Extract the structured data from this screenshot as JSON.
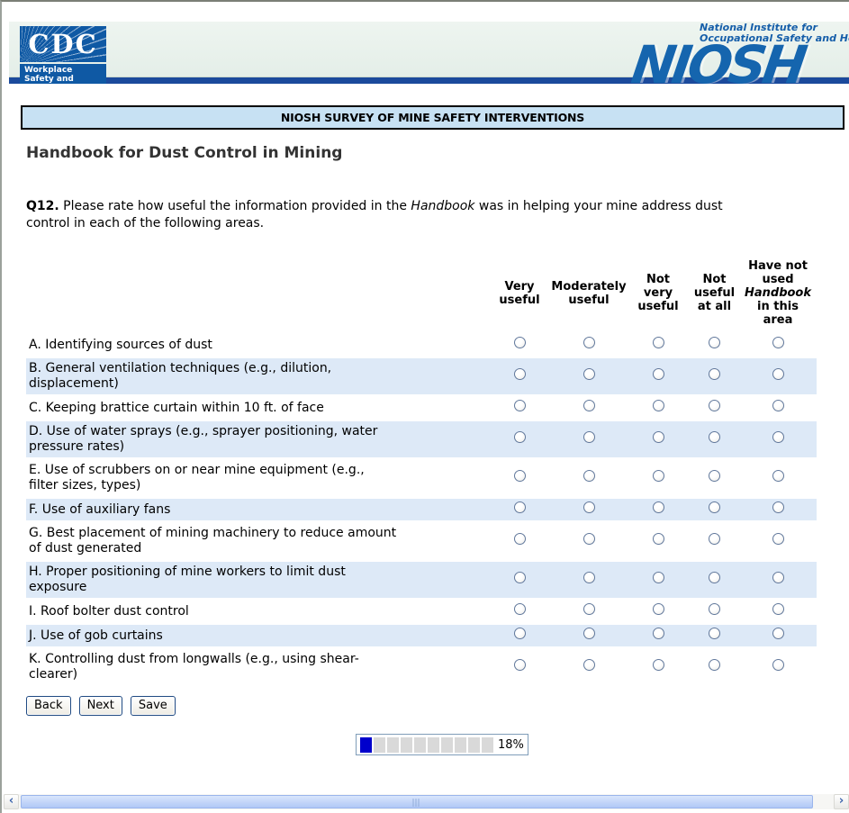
{
  "header": {
    "cdc": {
      "acronym": "CDC",
      "label_line1": "Workplace",
      "label_line2": "Safety and Health"
    },
    "niosh": {
      "tagline_line1": "National Institute for",
      "tagline_line2": "Occupational Safety and Health",
      "acronym": "NIOSH"
    }
  },
  "banner": {
    "title": "NIOSH SURVEY OF MINE SAFETY INTERVENTIONS"
  },
  "page": {
    "heading": "Handbook for Dust Control in Mining"
  },
  "question": {
    "number": "Q12.",
    "lead": " Please rate how useful the information provided in the ",
    "italic_word": "Handbook",
    "tail": " was in helping your mine address dust\ncontrol in each of the following areas."
  },
  "table": {
    "columns": [
      {
        "key": "very-useful",
        "label": "Very\nuseful"
      },
      {
        "key": "moderately-useful",
        "label": "Moderately\nuseful"
      },
      {
        "key": "not-very-useful",
        "label": "Not\nvery\nuseful"
      },
      {
        "key": "not-useful-at-all",
        "label": "Not\nuseful\nat all"
      },
      {
        "key": "have-not-used",
        "label_before": "Have not\nused\n",
        "label_italic": "Handbook",
        "label_after": "\nin this\narea"
      }
    ],
    "rows": [
      {
        "label": "A. Identifying sources of dust",
        "selected": null
      },
      {
        "label": "B. General ventilation techniques (e.g., dilution,\ndisplacement)",
        "selected": null
      },
      {
        "label": "C. Keeping brattice curtain within 10 ft. of face",
        "selected": null
      },
      {
        "label": "D. Use of water sprays (e.g., sprayer positioning, water\npressure rates)",
        "selected": null
      },
      {
        "label": "E. Use of scrubbers on or near mine equipment (e.g.,\nfilter sizes, types)",
        "selected": null
      },
      {
        "label": "F. Use of auxiliary fans",
        "selected": null
      },
      {
        "label": "G. Best placement of mining machinery to reduce amount\nof dust generated",
        "selected": null
      },
      {
        "label": "H. Proper positioning of mine workers to limit dust\nexposure",
        "selected": null
      },
      {
        "label": "I. Roof bolter dust control",
        "selected": null
      },
      {
        "label": "J. Use of gob curtains",
        "selected": null
      },
      {
        "label": "K. Controlling dust from longwalls (e.g., using shear-\nclearer)",
        "selected": null
      }
    ]
  },
  "buttons": {
    "back": "Back",
    "next": "Next",
    "save": "Save"
  },
  "progress": {
    "percent_label": "18%",
    "segments_total": 10,
    "segments_filled": 1
  },
  "icons": {
    "scroll_left": "‹",
    "scroll_right": "›"
  },
  "colors": {
    "banner_bg": "#c7e1f3",
    "row_alt_bg": "#dde9f7",
    "progress_fill": "#0000cc",
    "progress_empty": "#d9d9d9",
    "navy_bar": "#1b4a9c",
    "logo_blue": "#1565ae",
    "cdc_blue": "#0f59a4",
    "header_band": "#e9f2ec"
  }
}
